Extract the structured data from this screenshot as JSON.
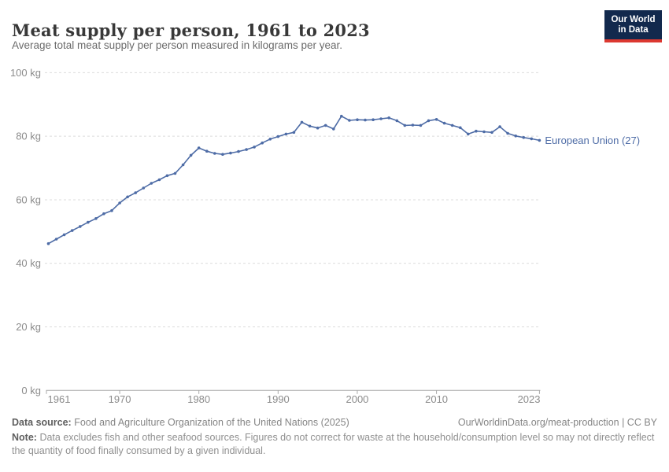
{
  "header": {
    "title": "Meat supply per person, 1961 to 2023",
    "subtitle": "Average total meat supply per person measured in kilograms per year.",
    "logo_line1": "Our World",
    "logo_line2": "in Data"
  },
  "chart_data": {
    "type": "line",
    "title": "Meat supply per person, 1961 to 2023",
    "xlabel": "",
    "ylabel": "kilograms per year",
    "unit": "kg",
    "xlim": [
      1961,
      2023
    ],
    "ylim": [
      0,
      100
    ],
    "grid": "horizontal dashed",
    "legend_position": "series label at right end of line",
    "x_ticks": [
      1961,
      1970,
      1980,
      1990,
      2000,
      2010,
      2023
    ],
    "y_ticks": [
      {
        "value": 0,
        "label": "0 kg"
      },
      {
        "value": 20,
        "label": "20 kg"
      },
      {
        "value": 40,
        "label": "40 kg"
      },
      {
        "value": 60,
        "label": "60 kg"
      },
      {
        "value": 80,
        "label": "80 kg"
      },
      {
        "value": 100,
        "label": "100 kg"
      }
    ],
    "series": [
      {
        "name": "European Union (27)",
        "color": "#4e6ca6",
        "x": [
          1961,
          1962,
          1963,
          1964,
          1965,
          1966,
          1967,
          1968,
          1969,
          1970,
          1971,
          1972,
          1973,
          1974,
          1975,
          1976,
          1977,
          1978,
          1979,
          1980,
          1981,
          1982,
          1983,
          1984,
          1985,
          1986,
          1987,
          1988,
          1989,
          1990,
          1991,
          1992,
          1993,
          1994,
          1995,
          1996,
          1997,
          1998,
          1999,
          2000,
          2001,
          2002,
          2003,
          2004,
          2005,
          2006,
          2007,
          2008,
          2009,
          2010,
          2011,
          2012,
          2013,
          2014,
          2015,
          2016,
          2017,
          2018,
          2019,
          2020,
          2021,
          2022,
          2023
        ],
        "values": [
          46.2,
          47.6,
          49.0,
          50.3,
          51.6,
          52.9,
          54.1,
          55.6,
          56.6,
          59.0,
          60.9,
          62.2,
          63.7,
          65.2,
          66.3,
          67.6,
          68.3,
          71.0,
          74.0,
          76.3,
          75.3,
          74.6,
          74.3,
          74.7,
          75.2,
          75.8,
          76.6,
          77.9,
          79.1,
          79.9,
          80.7,
          81.2,
          84.4,
          83.2,
          82.6,
          83.4,
          82.3,
          86.3,
          85.0,
          85.2,
          85.1,
          85.2,
          85.5,
          85.8,
          84.9,
          83.4,
          83.5,
          83.4,
          84.9,
          85.3,
          84.1,
          83.4,
          82.7,
          80.7,
          81.6,
          81.4,
          81.2,
          83.0,
          80.9,
          80.1,
          79.6,
          79.2,
          78.7
        ]
      }
    ]
  },
  "footer": {
    "datasource_label": "Data source:",
    "datasource_text": "Food and Agriculture Organization of the United Nations (2025)",
    "link_text": "OurWorldinData.org/meat-production | CC BY",
    "note_label": "Note:",
    "note_text": "Data excludes fish and other seafood sources. Figures do not correct for waste at the household/consumption level so may not directly reflect the quantity of food finally consumed by a given individual."
  }
}
